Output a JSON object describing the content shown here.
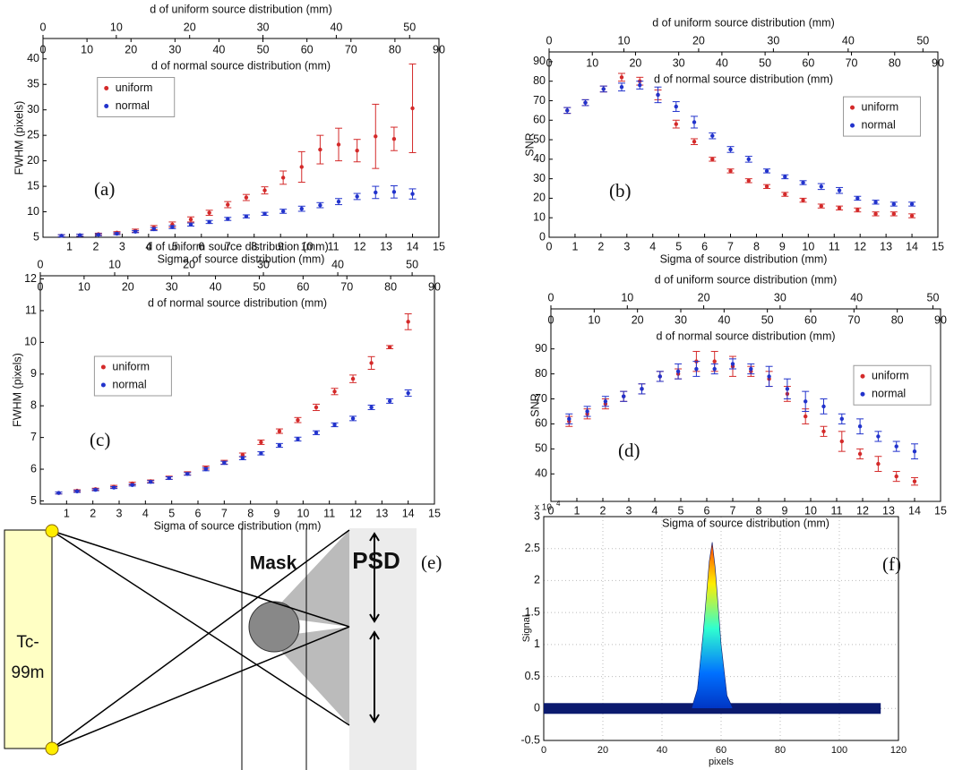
{
  "chart_data": [
    {
      "type": "errorbar",
      "label": "(a)",
      "xlabel": "Sigma of source distribution (mm)",
      "ylabel": "FWHM (pixels)",
      "x": [
        0.7,
        1.4,
        2.1,
        2.8,
        3.5,
        4.2,
        4.9,
        5.6,
        6.3,
        7.0,
        7.7,
        8.4,
        9.1,
        9.8,
        10.5,
        11.2,
        11.9,
        12.6,
        13.3,
        14.0
      ],
      "xlim": [
        0,
        15
      ],
      "xticks": [
        1,
        2,
        3,
        4,
        5,
        6,
        7,
        8,
        9,
        10,
        11,
        12,
        13,
        14,
        15
      ],
      "ylim": [
        5,
        44
      ],
      "yticks": [
        5,
        10,
        15,
        20,
        25,
        30,
        35,
        40
      ],
      "legend": "upper left",
      "series": [
        {
          "name": "uniform",
          "color": "#d42a2a",
          "values": [
            5.3,
            5.4,
            5.6,
            5.9,
            6.3,
            6.9,
            7.5,
            8.5,
            9.8,
            11.4,
            12.8,
            14.2,
            16.7,
            18.8,
            22.2,
            23.2,
            22.0,
            24.8,
            24.3,
            30.3
          ],
          "errors": [
            0.2,
            0.2,
            0.2,
            0.2,
            0.3,
            0.4,
            0.5,
            0.5,
            0.5,
            0.6,
            0.6,
            0.7,
            1.3,
            3.0,
            2.8,
            3.2,
            2.2,
            6.3,
            2.3,
            8.7
          ]
        },
        {
          "name": "normal",
          "color": "#2233cc",
          "values": [
            5.3,
            5.4,
            5.5,
            5.7,
            6.1,
            6.6,
            7.0,
            7.5,
            8.0,
            8.6,
            9.1,
            9.6,
            10.1,
            10.6,
            11.3,
            12.0,
            13.0,
            13.8,
            13.9,
            13.5
          ],
          "errors": [
            0.2,
            0.2,
            0.2,
            0.2,
            0.2,
            0.3,
            0.3,
            0.3,
            0.3,
            0.3,
            0.3,
            0.3,
            0.4,
            0.5,
            0.5,
            0.6,
            0.6,
            1.2,
            1.2,
            1.0
          ]
        }
      ],
      "top_axes": [
        {
          "xlabel": "d of normal source distribution (mm)",
          "xlim": [
            0,
            90
          ],
          "xticks": [
            0,
            10,
            20,
            30,
            40,
            50,
            60,
            70,
            80,
            90
          ]
        },
        {
          "xlabel": "d of uniform source distribution (mm)",
          "xlim": [
            0,
            54
          ],
          "xticks": [
            0,
            10,
            20,
            30,
            40,
            50
          ]
        }
      ]
    },
    {
      "type": "errorbar",
      "label": "(b)",
      "xlabel": "Sigma of source distribution (mm)",
      "ylabel": "SNR",
      "x": [
        0.7,
        1.4,
        2.1,
        2.8,
        3.5,
        4.2,
        4.9,
        5.6,
        6.3,
        7.0,
        7.7,
        8.4,
        9.1,
        9.8,
        10.5,
        11.2,
        11.9,
        12.6,
        13.3,
        14.0
      ],
      "xlim": [
        0,
        15
      ],
      "xticks": [
        0,
        1,
        2,
        3,
        4,
        5,
        6,
        7,
        8,
        9,
        10,
        11,
        12,
        13,
        14,
        15
      ],
      "ylim": [
        0,
        95
      ],
      "yticks": [
        0,
        10,
        20,
        30,
        40,
        50,
        60,
        70,
        80,
        90
      ],
      "legend": "upper right",
      "series": [
        {
          "name": "uniform",
          "color": "#d42a2a",
          "values": [
            65,
            69,
            76,
            82,
            80,
            73,
            58,
            49,
            40,
            34,
            29,
            26,
            22,
            19,
            16,
            15,
            14,
            12,
            12,
            11
          ],
          "errors": [
            1.5,
            1.5,
            1.5,
            2,
            2,
            2.5,
            2,
            1.5,
            1,
            1,
            1,
            1,
            1,
            1,
            1,
            1,
            1,
            1,
            1,
            1
          ]
        },
        {
          "name": "normal",
          "color": "#2233cc",
          "values": [
            65,
            69,
            76,
            77,
            78,
            73,
            67,
            59,
            52,
            45,
            40,
            34,
            31,
            28,
            26,
            24,
            20,
            18,
            17,
            17
          ],
          "errors": [
            1.5,
            1.5,
            1.5,
            2,
            2,
            4,
            2.5,
            3,
            1.5,
            1.5,
            1.5,
            1,
            1,
            1,
            1.5,
            1.5,
            1,
            1,
            1,
            1
          ]
        }
      ],
      "top_axes": [
        {
          "xlabel": "d of normal source distribution (mm)",
          "xlim": [
            0,
            90
          ],
          "xticks": [
            0,
            10,
            20,
            30,
            40,
            50,
            60,
            70,
            80,
            90
          ]
        },
        {
          "xlabel": "d of uniform source distribution (mm)",
          "xlim": [
            0,
            52
          ],
          "xticks": [
            0,
            10,
            20,
            30,
            40,
            50
          ]
        }
      ]
    },
    {
      "type": "errorbar",
      "label": "(c)",
      "xlabel": "Sigma of source distribution (mm)",
      "ylabel": "FWHM (pixels)",
      "x": [
        0.7,
        1.4,
        2.1,
        2.8,
        3.5,
        4.2,
        4.9,
        5.6,
        6.3,
        7.0,
        7.7,
        8.4,
        9.1,
        9.8,
        10.5,
        11.2,
        11.9,
        12.6,
        13.3,
        14.0
      ],
      "xlim": [
        0,
        15
      ],
      "xticks": [
        1,
        2,
        3,
        4,
        5,
        6,
        7,
        8,
        9,
        10,
        11,
        12,
        13,
        14,
        15
      ],
      "ylim": [
        4.9,
        12.1
      ],
      "yticks": [
        5,
        6,
        7,
        8,
        9,
        10,
        11,
        12
      ],
      "legend": "center left",
      "series": [
        {
          "name": "uniform",
          "color": "#d42a2a",
          "values": [
            5.25,
            5.32,
            5.37,
            5.45,
            5.55,
            5.62,
            5.73,
            5.87,
            6.05,
            6.22,
            6.45,
            6.85,
            7.2,
            7.55,
            7.95,
            8.45,
            8.85,
            9.35,
            9.85,
            10.65
          ],
          "errors": [
            0.03,
            0.03,
            0.03,
            0.04,
            0.04,
            0.04,
            0.05,
            0.05,
            0.05,
            0.06,
            0.06,
            0.07,
            0.07,
            0.08,
            0.1,
            0.1,
            0.12,
            0.2,
            0.05,
            0.25
          ]
        },
        {
          "name": "normal",
          "color": "#2233cc",
          "values": [
            5.25,
            5.3,
            5.35,
            5.42,
            5.5,
            5.6,
            5.72,
            5.85,
            6.0,
            6.2,
            6.35,
            6.5,
            6.75,
            6.95,
            7.15,
            7.4,
            7.6,
            7.95,
            8.15,
            8.4
          ],
          "errors": [
            0.03,
            0.03,
            0.03,
            0.03,
            0.03,
            0.04,
            0.04,
            0.04,
            0.05,
            0.05,
            0.05,
            0.05,
            0.06,
            0.06,
            0.06,
            0.06,
            0.07,
            0.07,
            0.07,
            0.1
          ]
        }
      ],
      "top_axes": [
        {
          "xlabel": "d of normal source distribution (mm)",
          "xlim": [
            0,
            90
          ],
          "xticks": [
            0,
            10,
            20,
            30,
            40,
            50,
            60,
            70,
            80,
            90
          ]
        },
        {
          "xlabel": "d of uniform source distribution (mm)",
          "xlim": [
            0,
            53
          ],
          "xticks": [
            0,
            10,
            20,
            30,
            40,
            50
          ]
        }
      ]
    },
    {
      "type": "errorbar",
      "label": "(d)",
      "xlabel": "Sigma of source distribution (mm)",
      "ylabel": "SNR",
      "x": [
        0.7,
        1.4,
        2.1,
        2.8,
        3.5,
        4.2,
        4.9,
        5.6,
        6.3,
        7.0,
        7.7,
        8.4,
        9.1,
        9.8,
        10.5,
        11.2,
        11.9,
        12.6,
        13.3,
        14.0
      ],
      "xlim": [
        0,
        15
      ],
      "xticks": [
        0,
        1,
        2,
        3,
        4,
        5,
        6,
        7,
        8,
        9,
        10,
        11,
        12,
        13,
        14,
        15
      ],
      "ylim": [
        29,
        106
      ],
      "yticks": [
        40,
        50,
        60,
        70,
        80,
        90
      ],
      "legend": "center right",
      "series": [
        {
          "name": "uniform",
          "color": "#d42a2a",
          "values": [
            61,
            64,
            68,
            71,
            74,
            79,
            80,
            85,
            85,
            83,
            81,
            78,
            72,
            63,
            57,
            53,
            48,
            44,
            39,
            37
          ],
          "errors": [
            2,
            2,
            2,
            2,
            2,
            2,
            2,
            4,
            4,
            4,
            2,
            3,
            3,
            3,
            2,
            4,
            2,
            3,
            2,
            1.5
          ]
        },
        {
          "name": "normal",
          "color": "#2233cc",
          "values": [
            62,
            65,
            69,
            71,
            74,
            79,
            81,
            82,
            82,
            84,
            82,
            79,
            74,
            69,
            67,
            62,
            59,
            55,
            51,
            49
          ],
          "errors": [
            2,
            2,
            2,
            2,
            2,
            2,
            3,
            3,
            2,
            2,
            2,
            4,
            4,
            4,
            3,
            2,
            3,
            2,
            2,
            3
          ]
        }
      ],
      "top_axes": [
        {
          "xlabel": "d of normal source distribution (mm)",
          "xlim": [
            0,
            90
          ],
          "xticks": [
            0,
            10,
            20,
            30,
            40,
            50,
            60,
            70,
            80,
            90
          ]
        },
        {
          "xlabel": "d of uniform source distribution (mm)",
          "xlim": [
            0,
            51
          ],
          "xticks": [
            0,
            10,
            20,
            30,
            40,
            50
          ]
        }
      ]
    },
    {
      "type": "area",
      "label": "(f)",
      "xlabel": "pixels",
      "ylabel": "Signal",
      "ymultiplier": "x 10",
      "ymultiplier_power": "4",
      "x": [
        0,
        10,
        20,
        30,
        40,
        50,
        52,
        54,
        56,
        57,
        58,
        60,
        62,
        64,
        70,
        80,
        90,
        100,
        110,
        114
      ],
      "values": [
        0,
        0,
        0,
        0,
        0,
        0,
        0.3,
        1.2,
        2.3,
        2.6,
        2.2,
        1.0,
        0.2,
        0,
        0,
        0,
        0,
        0,
        0,
        0
      ],
      "xlim": [
        0,
        120
      ],
      "xticks": [
        0,
        20,
        40,
        60,
        80,
        100,
        120
      ],
      "ylim": [
        -0.5,
        3
      ],
      "yticks": [
        -0.5,
        0,
        0.5,
        1,
        1.5,
        2,
        2.5,
        3
      ],
      "grid": true
    }
  ],
  "diagram": {
    "label": "(e)",
    "mask": "Mask",
    "psd": "PSD",
    "source": [
      "Tc-",
      "99m"
    ]
  }
}
